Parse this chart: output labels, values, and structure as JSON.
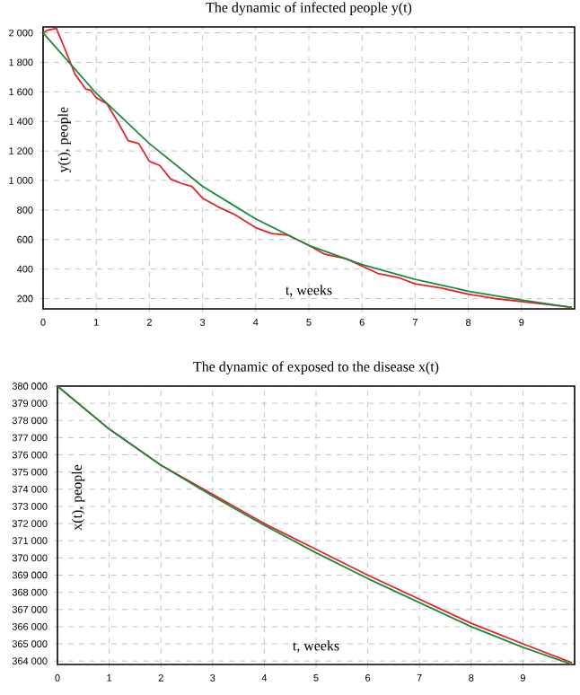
{
  "chart_data": [
    {
      "type": "line",
      "title": "The dynamic of infected people y(t)",
      "xlabel": "t, weeks",
      "ylabel": "y(t), people",
      "xlim": [
        0,
        10
      ],
      "ylim": [
        130,
        2040
      ],
      "xticks": [
        0,
        1,
        2,
        3,
        4,
        5,
        6,
        7,
        8,
        9
      ],
      "yticks": [
        {
          "value": 200,
          "label": "200"
        },
        {
          "value": 400,
          "label": "400"
        },
        {
          "value": 600,
          "label": "600"
        },
        {
          "value": 800,
          "label": "800"
        },
        {
          "value": 1000,
          "label": "1 000"
        },
        {
          "value": 1200,
          "label": "1 200"
        },
        {
          "value": 1400,
          "label": "1 400"
        },
        {
          "value": 1600,
          "label": "1 600"
        },
        {
          "value": 1800,
          "label": "1 800"
        },
        {
          "value": 2000,
          "label": "2 000"
        }
      ],
      "grid": true,
      "series": [
        {
          "color": "#e8202a",
          "x": [
            0,
            0.1,
            0.25,
            0.4,
            0.6,
            0.8,
            0.9,
            1.0,
            1.2,
            1.4,
            1.6,
            1.8,
            2.0,
            2.2,
            2.4,
            2.6,
            2.8,
            3.0,
            3.3,
            3.6,
            4.0,
            4.3,
            4.6,
            5.0,
            5.3,
            5.7,
            6.0,
            6.3,
            6.7,
            7.0,
            7.5,
            8.0,
            8.5,
            9.0,
            9.5,
            9.95
          ],
          "values": [
            2000,
            2020,
            2030,
            1900,
            1720,
            1620,
            1610,
            1560,
            1520,
            1400,
            1270,
            1250,
            1130,
            1100,
            1010,
            980,
            960,
            880,
            820,
            770,
            680,
            640,
            630,
            560,
            500,
            470,
            420,
            370,
            340,
            300,
            270,
            230,
            200,
            180,
            160,
            140
          ]
        },
        {
          "color": "#1a8a3a",
          "x": [
            0,
            1,
            2,
            3,
            4,
            5,
            6,
            7,
            8,
            9,
            9.95
          ],
          "values": [
            2000,
            1590,
            1250,
            960,
            740,
            560,
            430,
            330,
            250,
            190,
            140
          ]
        }
      ]
    },
    {
      "type": "line",
      "title": "The dynamic of exposed to the disease  x(t)",
      "xlabel": "t, weeks",
      "ylabel": "x(t), people",
      "xlim": [
        0,
        10
      ],
      "ylim": [
        363800,
        380000
      ],
      "xticks": [
        0,
        1,
        2,
        3,
        4,
        5,
        6,
        7,
        8,
        9
      ],
      "yticks": [
        {
          "value": 364000,
          "label": "364 000"
        },
        {
          "value": 365000,
          "label": "365 000"
        },
        {
          "value": 366000,
          "label": "366 000"
        },
        {
          "value": 367000,
          "label": "367 000"
        },
        {
          "value": 368000,
          "label": "368 000"
        },
        {
          "value": 369000,
          "label": "369 000"
        },
        {
          "value": 370000,
          "label": "370 000"
        },
        {
          "value": 371000,
          "label": "371 000"
        },
        {
          "value": 372000,
          "label": "372 000"
        },
        {
          "value": 373000,
          "label": "373 000"
        },
        {
          "value": 374000,
          "label": "374 000"
        },
        {
          "value": 375000,
          "label": "375 000"
        },
        {
          "value": 376000,
          "label": "376 000"
        },
        {
          "value": 377000,
          "label": "377 000"
        },
        {
          "value": 378000,
          "label": "378 000"
        },
        {
          "value": 379000,
          "label": "379 000"
        },
        {
          "value": 380000,
          "label": "380 000"
        }
      ],
      "grid": true,
      "series": [
        {
          "color": "#e8202a",
          "x": [
            0,
            1,
            2,
            3,
            4,
            5,
            6,
            7,
            8,
            9,
            9.95
          ],
          "values": [
            380000,
            377500,
            375400,
            373700,
            372000,
            370500,
            369000,
            367600,
            366200,
            365000,
            363900
          ]
        },
        {
          "color": "#1a8a3a",
          "x": [
            0,
            1,
            2,
            3,
            4,
            5,
            6,
            7,
            8,
            9,
            9.95
          ],
          "values": [
            380000,
            377500,
            375400,
            373600,
            371900,
            370300,
            368800,
            367400,
            366000,
            364800,
            363800
          ]
        }
      ]
    }
  ]
}
